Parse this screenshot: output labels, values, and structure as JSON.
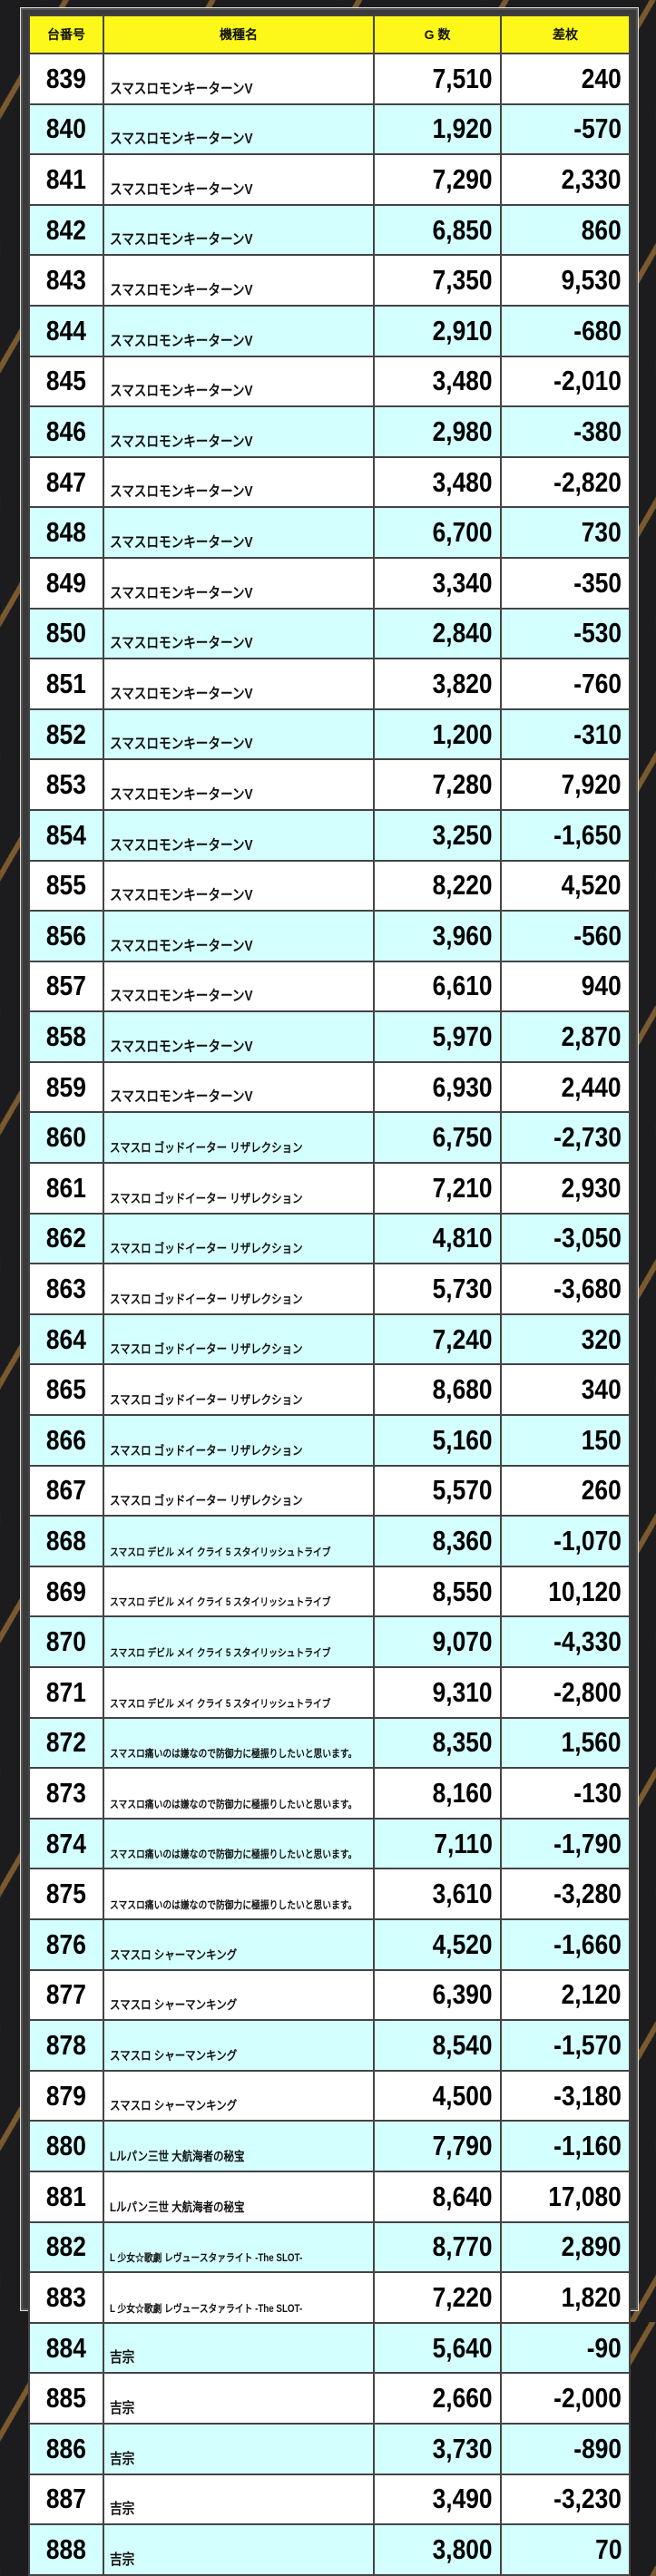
{
  "header": {
    "machine_no": "台番号",
    "model": "機種名",
    "games": "G 数",
    "diff": "差枚"
  },
  "colors": {
    "header_bg": "#fdf81a",
    "row_alt": "#d4ffff",
    "row": "#ffffff"
  },
  "rows": [
    {
      "no": "839",
      "name": "スマスロモンキーターンV",
      "games": "7,510",
      "diff": "240"
    },
    {
      "no": "840",
      "name": "スマスロモンキーターンV",
      "games": "1,920",
      "diff": "-570"
    },
    {
      "no": "841",
      "name": "スマスロモンキーターンV",
      "games": "7,290",
      "diff": "2,330"
    },
    {
      "no": "842",
      "name": "スマスロモンキーターンV",
      "games": "6,850",
      "diff": "860"
    },
    {
      "no": "843",
      "name": "スマスロモンキーターンV",
      "games": "7,350",
      "diff": "9,530"
    },
    {
      "no": "844",
      "name": "スマスロモンキーターンV",
      "games": "2,910",
      "diff": "-680"
    },
    {
      "no": "845",
      "name": "スマスロモンキーターンV",
      "games": "3,480",
      "diff": "-2,010"
    },
    {
      "no": "846",
      "name": "スマスロモンキーターンV",
      "games": "2,980",
      "diff": "-380"
    },
    {
      "no": "847",
      "name": "スマスロモンキーターンV",
      "games": "3,480",
      "diff": "-2,820"
    },
    {
      "no": "848",
      "name": "スマスロモンキーターンV",
      "games": "6,700",
      "diff": "730"
    },
    {
      "no": "849",
      "name": "スマスロモンキーターンV",
      "games": "3,340",
      "diff": "-350"
    },
    {
      "no": "850",
      "name": "スマスロモンキーターンV",
      "games": "2,840",
      "diff": "-530"
    },
    {
      "no": "851",
      "name": "スマスロモンキーターンV",
      "games": "3,820",
      "diff": "-760"
    },
    {
      "no": "852",
      "name": "スマスロモンキーターンV",
      "games": "1,200",
      "diff": "-310"
    },
    {
      "no": "853",
      "name": "スマスロモンキーターンV",
      "games": "7,280",
      "diff": "7,920"
    },
    {
      "no": "854",
      "name": "スマスロモンキーターンV",
      "games": "3,250",
      "diff": "-1,650"
    },
    {
      "no": "855",
      "name": "スマスロモンキーターンV",
      "games": "8,220",
      "diff": "4,520"
    },
    {
      "no": "856",
      "name": "スマスロモンキーターンV",
      "games": "3,960",
      "diff": "-560"
    },
    {
      "no": "857",
      "name": "スマスロモンキーターンV",
      "games": "6,610",
      "diff": "940"
    },
    {
      "no": "858",
      "name": "スマスロモンキーターンV",
      "games": "5,970",
      "diff": "2,870"
    },
    {
      "no": "859",
      "name": "スマスロモンキーターンV",
      "games": "6,930",
      "diff": "2,440"
    },
    {
      "no": "860",
      "name": "スマスロ ゴッドイーター リザレクション",
      "games": "6,750",
      "diff": "-2,730"
    },
    {
      "no": "861",
      "name": "スマスロ ゴッドイーター リザレクション",
      "games": "7,210",
      "diff": "2,930"
    },
    {
      "no": "862",
      "name": "スマスロ ゴッドイーター リザレクション",
      "games": "4,810",
      "diff": "-3,050"
    },
    {
      "no": "863",
      "name": "スマスロ ゴッドイーター リザレクション",
      "games": "5,730",
      "diff": "-3,680"
    },
    {
      "no": "864",
      "name": "スマスロ ゴッドイーター リザレクション",
      "games": "7,240",
      "diff": "320"
    },
    {
      "no": "865",
      "name": "スマスロ ゴッドイーター リザレクション",
      "games": "8,680",
      "diff": "340"
    },
    {
      "no": "866",
      "name": "スマスロ ゴッドイーター リザレクション",
      "games": "5,160",
      "diff": "150"
    },
    {
      "no": "867",
      "name": "スマスロ ゴッドイーター リザレクション",
      "games": "5,570",
      "diff": "260"
    },
    {
      "no": "868",
      "name": "スマスロ デビル メイ クライ 5 スタイリッシュトライブ",
      "games": "8,360",
      "diff": "-1,070"
    },
    {
      "no": "869",
      "name": "スマスロ デビル メイ クライ 5 スタイリッシュトライブ",
      "games": "8,550",
      "diff": "10,120"
    },
    {
      "no": "870",
      "name": "スマスロ デビル メイ クライ 5 スタイリッシュトライブ",
      "games": "9,070",
      "diff": "-4,330"
    },
    {
      "no": "871",
      "name": "スマスロ デビル メイ クライ 5 スタイリッシュトライブ",
      "games": "9,310",
      "diff": "-2,800"
    },
    {
      "no": "872",
      "name": "スマスロ痛いのは嫌なので防御力に極振りしたいと思います。",
      "games": "8,350",
      "diff": "1,560"
    },
    {
      "no": "873",
      "name": "スマスロ痛いのは嫌なので防御力に極振りしたいと思います。",
      "games": "8,160",
      "diff": "-130"
    },
    {
      "no": "874",
      "name": "スマスロ痛いのは嫌なので防御力に極振りしたいと思います。",
      "games": "7,110",
      "diff": "-1,790"
    },
    {
      "no": "875",
      "name": "スマスロ痛いのは嫌なので防御力に極振りしたいと思います。",
      "games": "3,610",
      "diff": "-3,280"
    },
    {
      "no": "876",
      "name": "スマスロ シャーマンキング",
      "games": "4,520",
      "diff": "-1,660"
    },
    {
      "no": "877",
      "name": "スマスロ シャーマンキング",
      "games": "6,390",
      "diff": "2,120"
    },
    {
      "no": "878",
      "name": "スマスロ シャーマンキング",
      "games": "8,540",
      "diff": "-1,570"
    },
    {
      "no": "879",
      "name": "スマスロ シャーマンキング",
      "games": "4,500",
      "diff": "-3,180"
    },
    {
      "no": "880",
      "name": "Lルパン三世 大航海者の秘宝",
      "games": "7,790",
      "diff": "-1,160"
    },
    {
      "no": "881",
      "name": "Lルパン三世 大航海者の秘宝",
      "games": "8,640",
      "diff": "17,080"
    },
    {
      "no": "882",
      "name": "L 少女☆歌劇 レヴュースタァライト -The SLOT-",
      "games": "8,770",
      "diff": "2,890"
    },
    {
      "no": "883",
      "name": "L 少女☆歌劇 レヴュースタァライト -The SLOT-",
      "games": "7,220",
      "diff": "1,820"
    },
    {
      "no": "884",
      "name": "吉宗",
      "games": "5,640",
      "diff": "-90"
    },
    {
      "no": "885",
      "name": "吉宗",
      "games": "2,660",
      "diff": "-2,000"
    },
    {
      "no": "886",
      "name": "吉宗",
      "games": "3,730",
      "diff": "-890"
    },
    {
      "no": "887",
      "name": "吉宗",
      "games": "3,490",
      "diff": "-3,230"
    },
    {
      "no": "888",
      "name": "吉宗",
      "games": "3,800",
      "diff": "70"
    }
  ]
}
